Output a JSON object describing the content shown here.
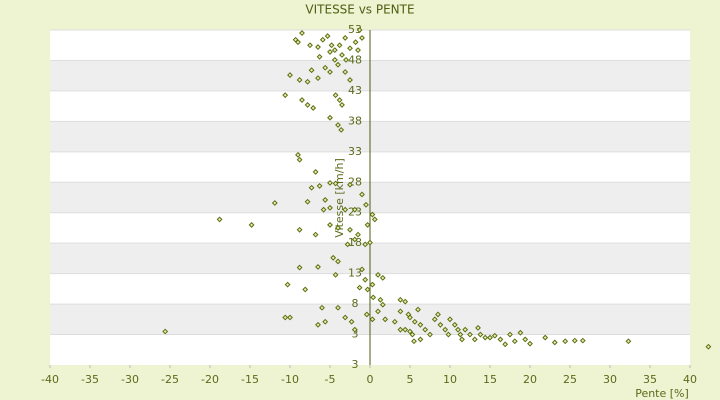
{
  "chart_data": {
    "type": "scatter",
    "title": "VITESSE vs PENTE",
    "x_label": "Pente [%]",
    "y_label": "Vitesse [km/h]",
    "color": "#5b6e12",
    "xlim": [
      -40,
      40
    ],
    "xticks": [
      -40,
      -35,
      -30,
      -25,
      -20,
      -15,
      -10,
      -5,
      0,
      5,
      10,
      15,
      20,
      25,
      30,
      35,
      40
    ],
    "ylim": [
      -2,
      53
    ],
    "yticks": [
      3,
      8,
      13,
      18,
      23,
      28,
      33,
      38,
      43,
      48,
      53
    ],
    "ymin_label": "3",
    "grid": true,
    "x": [
      -8.5,
      -9.3,
      -9,
      -7.5,
      -6.5,
      -5.9,
      -5.3,
      -4.8,
      -4.4,
      -3.8,
      -3.1,
      -5,
      -4.4,
      -6.3,
      -3.5,
      -2.5,
      -1.8,
      -1.5,
      -1,
      -1.3,
      -3,
      -4,
      -5.6,
      -7.3,
      -10,
      -8.8,
      -7.8,
      -6.5,
      -5,
      -3.1,
      -2.5,
      -10.6,
      -8.5,
      -7.8,
      -7.1,
      -3.8,
      -4.3,
      -3.5,
      -5,
      -4,
      -3.6,
      -9,
      -8.8,
      -6.8,
      -6.3,
      -7.3,
      -5,
      -4.3,
      -2.5,
      -5.6,
      -7.8,
      -11.9,
      -5,
      -5.8,
      -3.1,
      -1.9,
      -1,
      -0.5,
      0.3,
      0.6,
      -0.3,
      -18.8,
      -14.8,
      -8.8,
      -6.8,
      -5,
      -4,
      -2.5,
      -1.9,
      -1.5,
      -2.8,
      -0.6,
      0,
      -4.6,
      -4,
      -6.5,
      -8.8,
      -4.3,
      -1,
      -0.6,
      1,
      1.6,
      0.3,
      -10.3,
      -8.1,
      -1.3,
      -0.3,
      0.4,
      1.3,
      1.6,
      1,
      0.3,
      -0.4,
      -10,
      -10.6,
      -6,
      -4,
      -5.6,
      -6.5,
      -3.1,
      -2.3,
      -1.9,
      1.9,
      3.1,
      3.8,
      4.4,
      3.8,
      4.8,
      5,
      5.6,
      6,
      6.3,
      3.8,
      4.4,
      5,
      5.3,
      5.5,
      6.3,
      6.9,
      7.5,
      8.1,
      8.5,
      8.8,
      9.4,
      9.8,
      10,
      10.6,
      11,
      11.3,
      11.5,
      11.9,
      12.5,
      13.1,
      13.5,
      13.8,
      14.4,
      15,
      15.6,
      16.3,
      16.9,
      17.5,
      18.1,
      18.8,
      19.4,
      20,
      21.9,
      23.1,
      24.4,
      25.6,
      26.6,
      32.3,
      42.3,
      -25.6
    ],
    "values": [
      52.5,
      51.4,
      51,
      50.5,
      50.2,
      51.4,
      52,
      50.5,
      49.7,
      50.5,
      51.7,
      49.4,
      48.1,
      48.6,
      48.9,
      50,
      51,
      49.7,
      51.7,
      53,
      48.1,
      47.3,
      46.8,
      46.4,
      45.6,
      44.8,
      44.5,
      45.1,
      46.1,
      46.1,
      44.8,
      42.3,
      41.5,
      40.7,
      40.2,
      41.5,
      42.3,
      40.7,
      38.6,
      37.4,
      36.6,
      32.5,
      31.7,
      29.7,
      27.4,
      27.1,
      27.9,
      27.8,
      27.6,
      25.1,
      24.8,
      24.6,
      23.8,
      23.5,
      23.5,
      23.5,
      26,
      24.3,
      22.7,
      21.9,
      21,
      21.9,
      21,
      20.2,
      19.4,
      21,
      20.5,
      20.2,
      18.6,
      19.4,
      17.8,
      17.8,
      18.1,
      15.6,
      15,
      14.1,
      14,
      12.8,
      13.7,
      12,
      12.8,
      12.3,
      11.2,
      11.2,
      10.4,
      10.7,
      10.4,
      9.1,
      8.7,
      7.9,
      6.8,
      5.5,
      6.3,
      5.8,
      5.8,
      7.4,
      7.4,
      5.1,
      4.6,
      5.8,
      5.1,
      3.8,
      5.5,
      5.1,
      8.7,
      8.4,
      6.8,
      6.3,
      5.8,
      5.1,
      7.1,
      4.6,
      3.8,
      3.8,
      3.5,
      3,
      1.9,
      2.2,
      3.8,
      3,
      5.5,
      6.3,
      4.6,
      3.8,
      3,
      5.5,
      4.6,
      3.8,
      3,
      2.2,
      3.8,
      3,
      2.2,
      4.1,
      3,
      2.5,
      2.5,
      2.8,
      2.2,
      1.4,
      3,
      1.9,
      3.3,
      2.2,
      1.5,
      2.5,
      1.7,
      1.9,
      2,
      2,
      1.9,
      1,
      3.5
    ]
  }
}
